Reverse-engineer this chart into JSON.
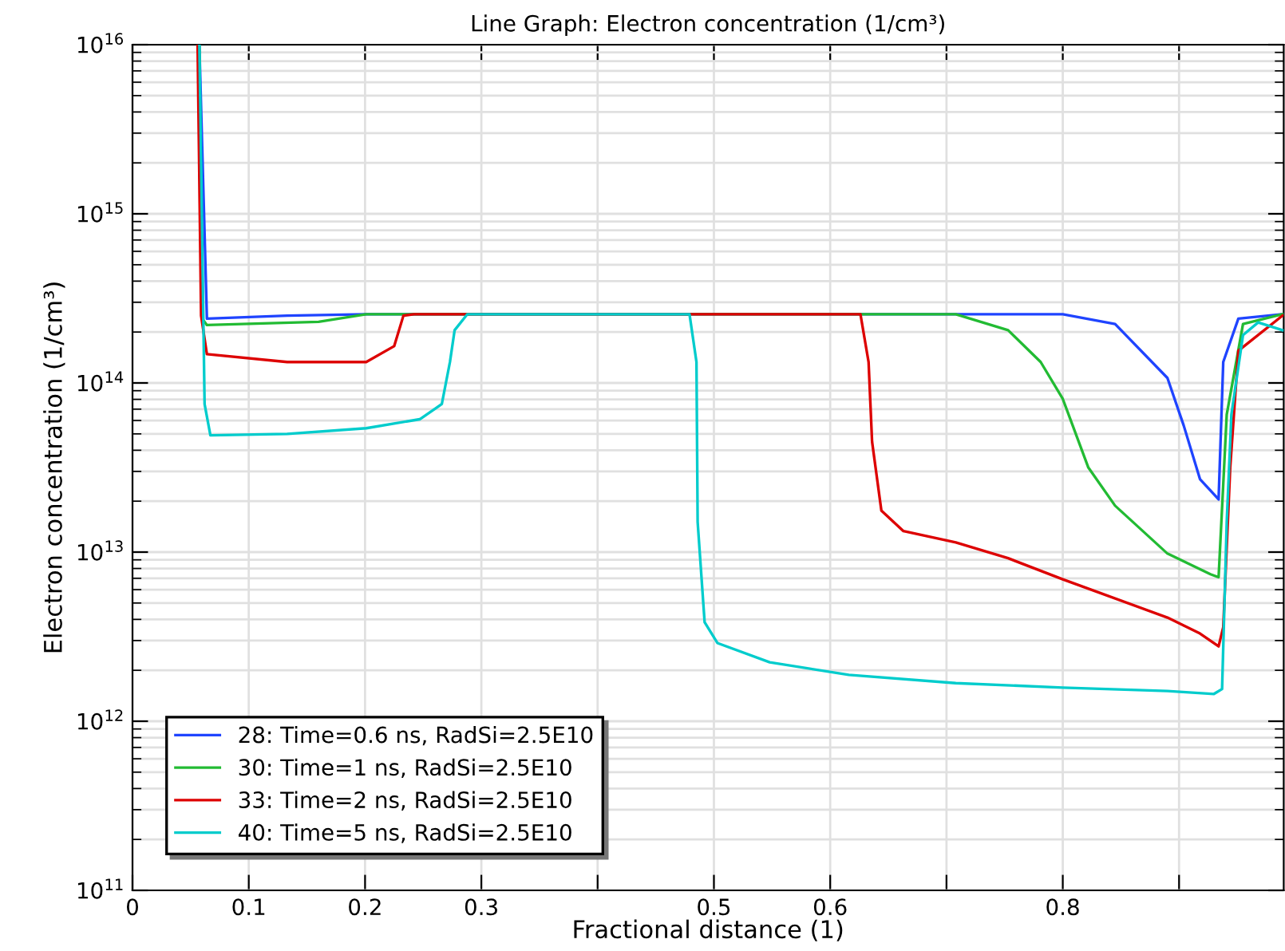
{
  "chart_data": {
    "type": "line",
    "title": "Line Graph: Electron concentration (1/cm³)",
    "xlabel": "Fractional distance (1)",
    "ylabel": "Electron concentration (1/cm³)",
    "log": "y",
    "grid": true,
    "legend": "bottom left",
    "line_style": "solid",
    "marker": "none",
    "xlim": [
      0,
      0.99
    ],
    "ylim": [
      100000000000.0,
      1e+16
    ],
    "xticks": [
      0,
      0.1,
      0.2,
      0.3,
      {
        "value": 0.4,
        "label": null
      },
      0.5,
      0.6,
      {
        "value": 0.7,
        "label": null
      },
      0.8,
      {
        "value": 0.9,
        "label": null
      }
    ],
    "yticks": [
      {
        "value": 100000000000.0,
        "label": "10$^{11}$"
      },
      {
        "value": 1000000000000.0,
        "label": "10$^{12}$"
      },
      {
        "value": 10000000000000.0,
        "label": "10$^{13}$"
      },
      {
        "value": 100000000000000.0,
        "label": "10$^{14}$"
      },
      {
        "value": 1000000000000000.0,
        "label": "10$^{15}$"
      },
      {
        "value": 1e+16,
        "label": "10$^{16}$"
      }
    ],
    "series": [
      {
        "name": "28: Time=0.6 ns, RadSi=2.5E10",
        "color": "#1f44ff",
        "x": [
          0.0575,
          0.064,
          0.133,
          0.201,
          0.8,
          0.845,
          0.89,
          0.904,
          0.918,
          0.934,
          0.938,
          0.951,
          0.989
        ],
        "values": [
          1e+16,
          240000000000000.0,
          250000000000000.0,
          255000000000000.0,
          255000000000000.0,
          223000000000000.0,
          107000000000000.0,
          56000000000000.0,
          27000000000000.0,
          20500000000000.0,
          133000000000000.0,
          240000000000000.0,
          255000000000000.0
        ]
      },
      {
        "name": "30: Time=1 ns, RadSi=2.5E10",
        "color": "#22bb33",
        "x": [
          0.0575,
          0.06,
          0.064,
          0.16,
          0.201,
          0.708,
          0.753,
          0.781,
          0.8,
          0.822,
          0.845,
          0.89,
          0.927,
          0.934,
          0.941,
          0.955,
          0.989
        ],
        "values": [
          1e+16,
          240000000000000.0,
          220000000000000.0,
          230000000000000.0,
          255000000000000.0,
          255000000000000.0,
          205000000000000.0,
          133000000000000.0,
          80500000000000.0,
          31600000000000.0,
          18800000000000.0,
          9800000000000.0,
          7400000000000.0,
          7100000000000.0,
          65000000000000.0,
          223000000000000.0,
          255000000000000.0
        ]
      },
      {
        "name": "33: Time=2 ns, RadSi=2.5E10",
        "color": "#dd0000",
        "x": [
          0.056,
          0.059,
          0.064,
          0.133,
          0.201,
          0.225,
          0.233,
          0.242,
          0.626,
          0.633,
          0.636,
          0.644,
          0.663,
          0.708,
          0.753,
          0.8,
          0.89,
          0.918,
          0.934,
          0.938,
          0.944,
          0.951,
          0.989
        ],
        "values": [
          1e+16,
          250000000000000.0,
          148000000000000.0,
          133000000000000.0,
          133000000000000.0,
          165000000000000.0,
          250000000000000.0,
          255000000000000.0,
          255000000000000.0,
          133000000000000.0,
          45000000000000.0,
          17600000000000.0,
          13300000000000.0,
          11400000000000.0,
          9200000000000.0,
          6900000000000.0,
          4100000000000.0,
          3300000000000.0,
          2770000000000.0,
          3600000000000.0,
          31600000000000.0,
          155000000000000.0,
          250000000000000.0
        ]
      },
      {
        "name": "40: Time=5 ns, RadSi=2.5E10",
        "color": "#00cccc",
        "x": [
          0.0575,
          0.062,
          0.067,
          0.133,
          0.201,
          0.247,
          0.266,
          0.273,
          0.277,
          0.288,
          0.479,
          0.485,
          0.486,
          0.492,
          0.503,
          0.548,
          0.616,
          0.708,
          0.8,
          0.89,
          0.93,
          0.937,
          0.941,
          0.945,
          0.955,
          0.968,
          0.989
        ],
        "values": [
          1e+16,
          75000000000000.0,
          49000000000000.0,
          50000000000000.0,
          54000000000000.0,
          61000000000000.0,
          75000000000000.0,
          133000000000000.0,
          205000000000000.0,
          255000000000000.0,
          255000000000000.0,
          133000000000000.0,
          15100000000000.0,
          3850000000000.0,
          2900000000000.0,
          2230000000000.0,
          1880000000000.0,
          1680000000000.0,
          1580000000000.0,
          1510000000000.0,
          1450000000000.0,
          1550000000000.0,
          15100000000000.0,
          65000000000000.0,
          192000000000000.0,
          228000000000000.0,
          205000000000000.0
        ]
      }
    ]
  }
}
